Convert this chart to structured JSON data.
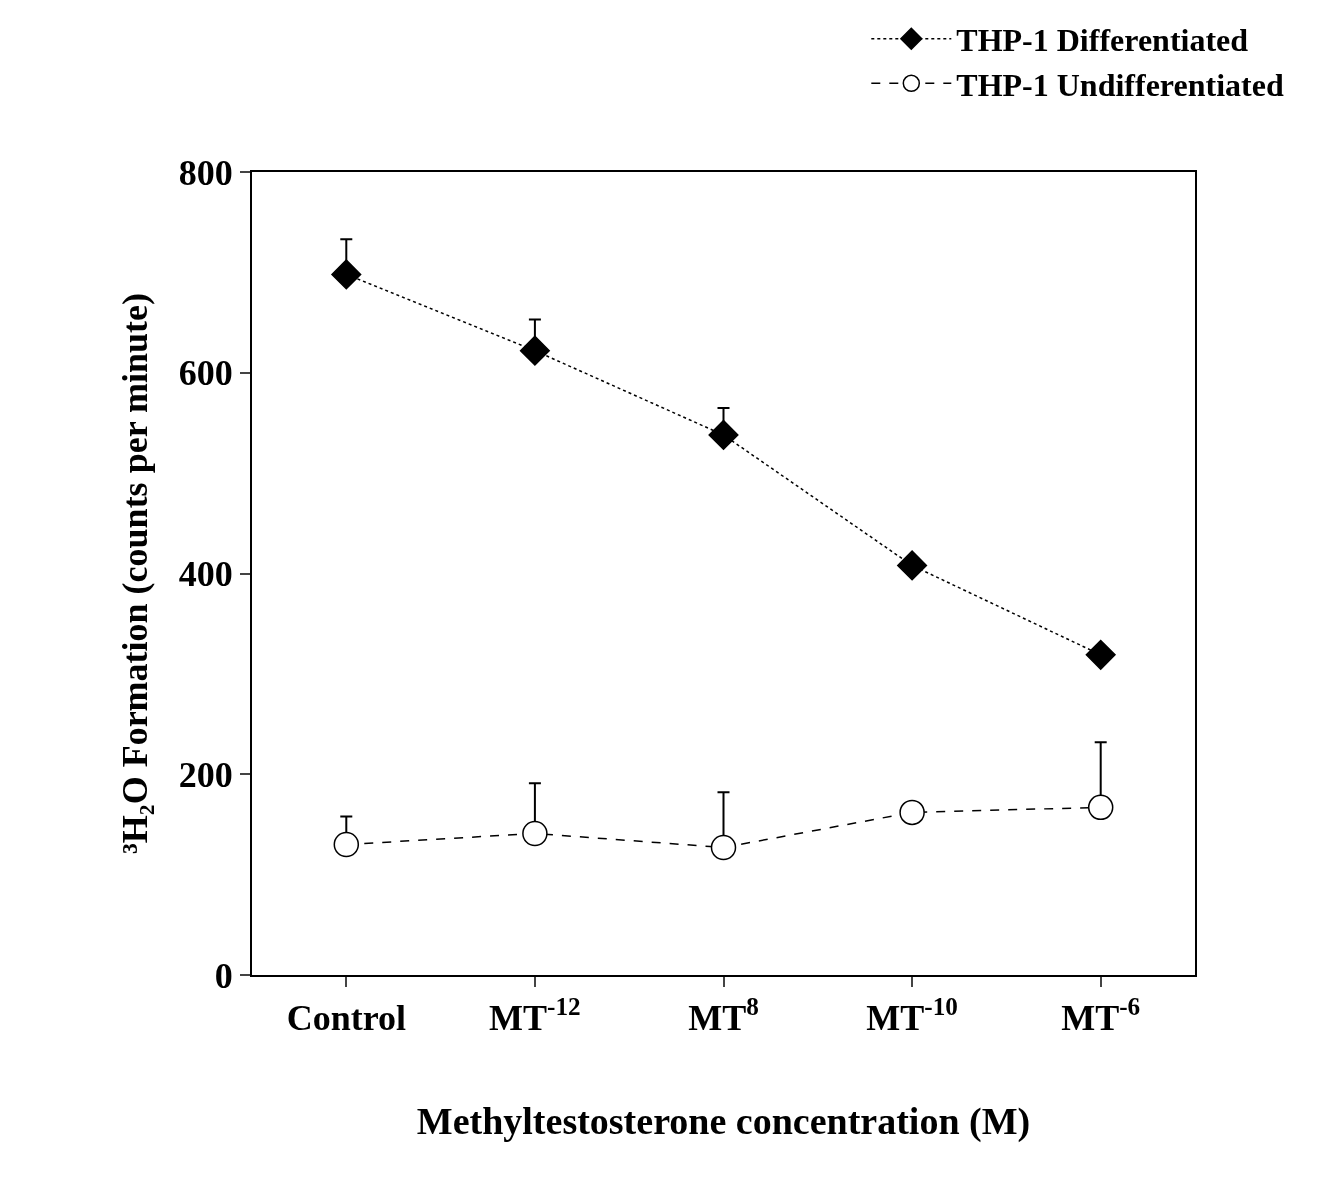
{
  "chart_data": {
    "type": "line",
    "xlabel": "Methyltestosterone concentration (M)",
    "ylabel": "³H₂O Formation (counts per minute)",
    "categories": [
      "Control",
      "MT$^{-12}$",
      "MT$^{8}$",
      "MT$^{-10}$",
      "MT$^{-6}$"
    ],
    "series": [
      {
        "name": "THP-1 Differentiated",
        "color": "#000000",
        "marker": "diamond",
        "line_style": "dotted",
        "values": [
          698,
          622,
          538,
          408,
          319
        ],
        "errors": [
          [
            698,
            733
          ],
          [
            622,
            653
          ],
          [
            538,
            565
          ],
          null,
          null
        ]
      },
      {
        "name": "THP-1 Undifferentiated",
        "color": "#ffffff",
        "marker": "circle",
        "line_style": "dashed",
        "values": [
          130,
          141,
          127,
          162,
          167
        ],
        "errors": [
          [
            130,
            158
          ],
          [
            141,
            191
          ],
          [
            127,
            182
          ],
          null,
          [
            167,
            232
          ]
        ]
      }
    ],
    "ylim": [
      0,
      800
    ],
    "yticks": [
      0,
      200,
      400,
      600,
      800
    ],
    "legend": "top right"
  }
}
